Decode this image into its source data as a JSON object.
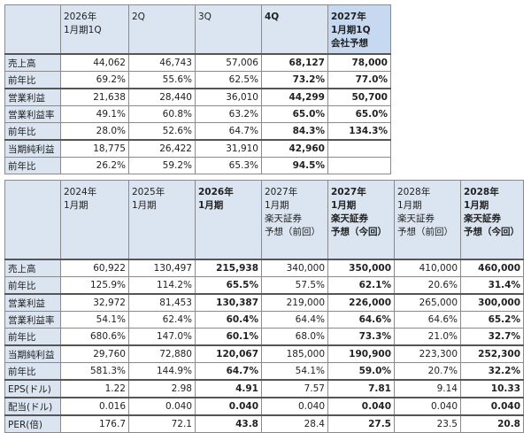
{
  "table1": {
    "header": [
      "2026年\n1月期1Q",
      "2Q",
      "3Q",
      "4Q",
      "2027年\n1月期1Q\n会社予想"
    ],
    "rows": [
      [
        "売上高",
        "44,062",
        "46,743",
        "57,006",
        "68,127",
        "78,000"
      ],
      [
        "前年比",
        "69.2%",
        "55.6%",
        "62.5%",
        "73.2%",
        "77.0%"
      ],
      [
        "営業利益",
        "21,638",
        "28,440",
        "36,010",
        "44,299",
        "50,700"
      ],
      [
        "営業利益率",
        "49.1%",
        "60.8%",
        "63.2%",
        "65.0%",
        "65.0%"
      ],
      [
        "前年比",
        "28.0%",
        "52.6%",
        "64.7%",
        "84.3%",
        "134.3%"
      ],
      [
        "当期純利益",
        "18,775",
        "26,422",
        "31,910",
        "42,960"
      ],
      [
        "前年比",
        "26.2%",
        "59.2%",
        "65.3%",
        "94.5%"
      ]
    ]
  },
  "table2": {
    "header": [
      "2024年\n1月期",
      "2025年\n1月期",
      "2026年\n1月期",
      "2027年\n1月期\n楽天証券\n予想（前回）",
      "2027年\n1月期\n楽天証券\n予想（今回）",
      "2028年\n1月期\n楽天証券\n予想（前回）",
      "2028年\n1月期\n楽天証券\n予想（今回）"
    ],
    "rows": [
      [
        "売上高",
        "60,922",
        "130,497",
        "215,938",
        "340,000",
        "350,000",
        "410,000",
        "460,000"
      ],
      [
        "前年比",
        "125.9%",
        "114.2%",
        "65.5%",
        "57.5%",
        "62.1%",
        "20.6%",
        "31.4%"
      ],
      [
        "営業利益",
        "32,972",
        "81,453",
        "130,387",
        "219,000",
        "226,000",
        "265,000",
        "300,000"
      ],
      [
        "営業利益率",
        "54.1%",
        "62.4%",
        "60.4%",
        "64.4%",
        "64.6%",
        "64.6%",
        "65.2%"
      ],
      [
        "前年比",
        "680.6%",
        "147.0%",
        "60.1%",
        "68.0%",
        "73.3%",
        "21.0%",
        "32.7%"
      ],
      [
        "当期純利益",
        "29,760",
        "72,880",
        "120,067",
        "185,000",
        "190,900",
        "223,300",
        "252,300"
      ],
      [
        "前年比",
        "581.3%",
        "144.9%",
        "64.7%",
        "54.1%",
        "59.0%",
        "20.7%",
        "32.2%"
      ],
      [
        "EPS(ドル)",
        "1.22",
        "2.98",
        "4.91",
        "7.57",
        "7.81",
        "9.14",
        "10.33"
      ],
      [
        "配当(ドル)",
        "0.016",
        "0.040",
        "0.040",
        "0.040",
        "0.040",
        "0.040",
        "0.040"
      ],
      [
        "PER(倍)",
        "176.7",
        "72.1",
        "43.8",
        "28.4",
        "27.5",
        "23.5",
        "20.8"
      ]
    ]
  }
}
